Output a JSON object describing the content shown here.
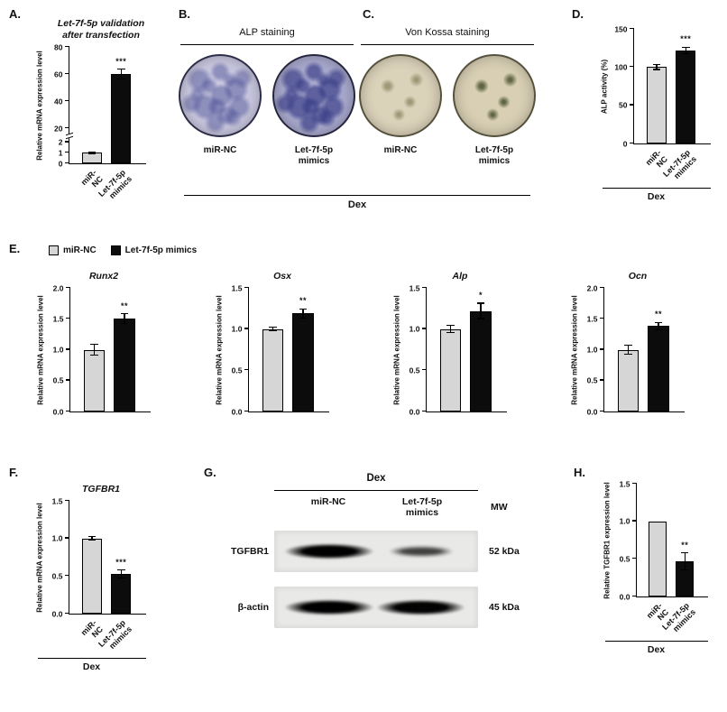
{
  "panels": {
    "a": "A.",
    "b": "B.",
    "c": "C.",
    "d": "D.",
    "e": "E.",
    "f": "F.",
    "g": "G.",
    "h": "H."
  },
  "staining_group_label": "Dex",
  "legend": {
    "items": [
      {
        "label": "miR-NC",
        "color": "#d6d6d6"
      },
      {
        "label": "Let-7f-5p mimics",
        "color": "#0c0c0c"
      }
    ]
  },
  "panel_b": {
    "title": "ALP staining",
    "wells": [
      {
        "label": "miR-NC",
        "base": "#c9c7df",
        "speckle": "#474c92",
        "speckle_alpha": 0.45,
        "density": "high",
        "ring": "#2d2d49"
      },
      {
        "label": "Let-7f-5p\nmimics",
        "base": "#a8a8cd",
        "speckle": "#363b85",
        "speckle_alpha": 0.65,
        "density": "high",
        "ring": "#262640"
      }
    ]
  },
  "panel_c": {
    "title": "Von Kossa staining",
    "wells": [
      {
        "label": "miR-NC",
        "base": "#dbd2ba",
        "speckle": "#6a6a40",
        "speckle_alpha": 0.55,
        "density": "low",
        "ring": "#55513c"
      },
      {
        "label": "Let-7f-5p\nmimics",
        "base": "#d8cfb4",
        "speckle": "#4c5530",
        "speckle_alpha": 0.85,
        "density": "low",
        "ring": "#55513c"
      }
    ]
  },
  "panel_g": {
    "group_label": "Dex",
    "columns": [
      "miR-NC",
      "Let-7f-5p\nmimics"
    ],
    "mw_header": "MW",
    "rows": [
      {
        "protein": "TGFBR1",
        "mw": "52 kDa",
        "bands": [
          {
            "intensity": 1.0
          },
          {
            "intensity": 0.45
          }
        ]
      },
      {
        "protein": "β-actin",
        "mw": "45 kDa",
        "bands": [
          {
            "intensity": 1.0
          },
          {
            "intensity": 0.97
          }
        ]
      }
    ]
  },
  "chart_data": [
    {
      "id": "A",
      "type": "bar",
      "title": "Let-7f-5p validation\nafter transfection",
      "title_italic": true,
      "ylabel": "Relative mRNA expression level",
      "categories": [
        "miR-NC",
        "Let-7f-5p\nmimics"
      ],
      "values": [
        1.0,
        60
      ],
      "errors": [
        0.12,
        4
      ],
      "sig": [
        "",
        "***"
      ],
      "bar_colors": [
        "#d6d6d6",
        "#0c0c0c"
      ],
      "axis": {
        "type": "broken",
        "lower": [
          0,
          2
        ],
        "upper": [
          20,
          80
        ],
        "tick_values": [
          0,
          1,
          2,
          20,
          40,
          60,
          80
        ],
        "tick_labels": [
          "0",
          "1",
          "2",
          "20",
          "40",
          "60",
          "80"
        ]
      },
      "show_x_labels": true,
      "group_label": ""
    },
    {
      "id": "D",
      "type": "bar",
      "title": "",
      "title_italic": false,
      "ylabel": "ALP activity (%)",
      "categories": [
        "miR-NC",
        "Let-7f-5p\nmimics"
      ],
      "values": [
        100,
        122
      ],
      "errors": [
        4,
        5
      ],
      "sig": [
        "",
        "***"
      ],
      "bar_colors": [
        "#d6d6d6",
        "#0c0c0c"
      ],
      "axis": {
        "type": "linear",
        "range": [
          0,
          150
        ],
        "tick_values": [
          0,
          50,
          100,
          150
        ],
        "tick_labels": [
          "0",
          "50",
          "100",
          "150"
        ]
      },
      "show_x_labels": true,
      "group_label": "Dex"
    },
    {
      "id": "E1",
      "type": "bar",
      "title": "Runx2",
      "title_italic": true,
      "ylabel": "Relative mRNA expression level",
      "categories": [
        "miR-NC",
        "Let-7f-5p mimics"
      ],
      "values": [
        1.0,
        1.5
      ],
      "errors": [
        0.1,
        0.09
      ],
      "sig": [
        "",
        "**"
      ],
      "bar_colors": [
        "#d6d6d6",
        "#0c0c0c"
      ],
      "axis": {
        "type": "linear",
        "range": [
          0,
          2.0
        ],
        "tick_values": [
          0,
          0.5,
          1.0,
          1.5,
          2.0
        ],
        "tick_labels": [
          "0.0",
          "0.5",
          "1.0",
          "1.5",
          "2.0"
        ]
      },
      "show_x_labels": false,
      "group_label": ""
    },
    {
      "id": "E2",
      "type": "bar",
      "title": "Osx",
      "title_italic": true,
      "ylabel": "Relative mRNA expression level",
      "categories": [
        "miR-NC",
        "Let-7f-5p mimics"
      ],
      "values": [
        1.0,
        1.19
      ],
      "errors": [
        0.03,
        0.06
      ],
      "sig": [
        "",
        "**"
      ],
      "bar_colors": [
        "#d6d6d6",
        "#0c0c0c"
      ],
      "axis": {
        "type": "linear",
        "range": [
          0,
          1.5
        ],
        "tick_values": [
          0,
          0.5,
          1.0,
          1.5
        ],
        "tick_labels": [
          "0.0",
          "0.5",
          "1.0",
          "1.5"
        ]
      },
      "show_x_labels": false,
      "group_label": ""
    },
    {
      "id": "E3",
      "type": "bar",
      "title": "Alp",
      "title_italic": true,
      "ylabel": "Relative mRNA expression level",
      "categories": [
        "miR-NC",
        "Let-7f-5p mimics"
      ],
      "values": [
        1.0,
        1.22
      ],
      "errors": [
        0.05,
        0.1
      ],
      "sig": [
        "",
        "*"
      ],
      "bar_colors": [
        "#d6d6d6",
        "#0c0c0c"
      ],
      "axis": {
        "type": "linear",
        "range": [
          0,
          1.5
        ],
        "tick_values": [
          0,
          0.5,
          1.0,
          1.5
        ],
        "tick_labels": [
          "0.0",
          "0.5",
          "1.0",
          "1.5"
        ]
      },
      "show_x_labels": false,
      "group_label": ""
    },
    {
      "id": "E4",
      "type": "bar",
      "title": "Ocn",
      "title_italic": true,
      "ylabel": "Relative mRNA expression level",
      "categories": [
        "miR-NC",
        "Let-7f-5p mimics"
      ],
      "values": [
        1.0,
        1.38
      ],
      "errors": [
        0.08,
        0.07
      ],
      "sig": [
        "",
        "**"
      ],
      "bar_colors": [
        "#d6d6d6",
        "#0c0c0c"
      ],
      "axis": {
        "type": "linear",
        "range": [
          0,
          2.0
        ],
        "tick_values": [
          0,
          0.5,
          1.0,
          1.5,
          2.0
        ],
        "tick_labels": [
          "0.0",
          "0.5",
          "1.0",
          "1.5",
          "2.0"
        ]
      },
      "show_x_labels": false,
      "group_label": ""
    },
    {
      "id": "F",
      "type": "bar",
      "title": "TGFBR1",
      "title_italic": true,
      "ylabel": "Relative mRNA expression level",
      "categories": [
        "miR-NC",
        "Let-7f-5p\nmimics"
      ],
      "values": [
        1.0,
        0.53
      ],
      "errors": [
        0.03,
        0.06
      ],
      "sig": [
        "",
        "***"
      ],
      "bar_colors": [
        "#d6d6d6",
        "#0c0c0c"
      ],
      "axis": {
        "type": "linear",
        "range": [
          0,
          1.5
        ],
        "tick_values": [
          0,
          0.5,
          1.0,
          1.5
        ],
        "tick_labels": [
          "0.0",
          "0.5",
          "1.0",
          "1.5"
        ]
      },
      "show_x_labels": true,
      "group_label": "Dex"
    },
    {
      "id": "H",
      "type": "bar",
      "title": "",
      "title_italic": false,
      "ylabel": "Relative TGFBR1 expression level",
      "categories": [
        "miR-NC",
        "Let-7f-5p\nmimics"
      ],
      "values": [
        1.0,
        0.47
      ],
      "errors": [
        0,
        0.12
      ],
      "sig": [
        "",
        "**"
      ],
      "bar_colors": [
        "#d6d6d6",
        "#0c0c0c"
      ],
      "axis": {
        "type": "linear",
        "range": [
          0,
          1.5
        ],
        "tick_values": [
          0,
          0.5,
          1.0,
          1.5
        ],
        "tick_labels": [
          "0.0",
          "0.5",
          "1.0",
          "1.5"
        ]
      },
      "show_x_labels": true,
      "group_label": "Dex"
    }
  ]
}
